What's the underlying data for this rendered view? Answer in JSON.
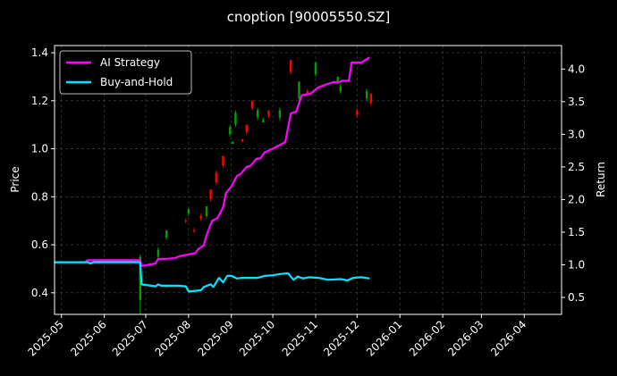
{
  "chart_data": {
    "type": "line",
    "title": "cnoption [90005550.SZ]",
    "ylabel": "Price",
    "y2label": "Return",
    "xlim": [
      "2025-04-26",
      "2026-04-28"
    ],
    "ylim": [
      0.31,
      1.43
    ],
    "y2lim": [
      0.24,
      4.36
    ],
    "x_ticks": [
      "2025-05",
      "2025-06",
      "2025-07",
      "2025-08",
      "2025-09",
      "2025-10",
      "2025-11",
      "2025-12",
      "2026-01",
      "2026-02",
      "2026-03",
      "2026-04"
    ],
    "y_ticks": [
      0.4,
      0.6,
      0.8,
      1.0,
      1.2,
      1.4
    ],
    "y_tick_labels": [
      "0.4",
      "0.6",
      "0.8",
      "1.0",
      "1.2",
      "1.4"
    ],
    "y2_ticks": [
      0.5,
      1.0,
      1.5,
      2.0,
      2.5,
      3.0,
      3.5,
      4.0
    ],
    "y2_tick_labels": [
      "0.5",
      "1.0",
      "1.5",
      "2.0",
      "2.5",
      "3.0",
      "3.5",
      "4.0"
    ],
    "grid": true,
    "legend_position": "upper-left",
    "series": [
      {
        "name": "AI Strategy",
        "axis": "right",
        "color": "#ff00ff",
        "points": [
          [
            "2025-04-26",
            1.04
          ],
          [
            "2025-05-18",
            1.04
          ],
          [
            "2025-05-20",
            1.07
          ],
          [
            "2025-06-01",
            1.07
          ],
          [
            "2025-06-27",
            1.07
          ],
          [
            "2025-06-28",
            0.98
          ],
          [
            "2025-07-03",
            1.0
          ],
          [
            "2025-07-08",
            1.02
          ],
          [
            "2025-07-10",
            1.09
          ],
          [
            "2025-07-15",
            1.09
          ],
          [
            "2025-07-22",
            1.1
          ],
          [
            "2025-07-25",
            1.13
          ],
          [
            "2025-08-01",
            1.16
          ],
          [
            "2025-08-06",
            1.18
          ],
          [
            "2025-08-08",
            1.24
          ],
          [
            "2025-08-12",
            1.3
          ],
          [
            "2025-08-14",
            1.45
          ],
          [
            "2025-08-18",
            1.67
          ],
          [
            "2025-08-22",
            1.72
          ],
          [
            "2025-08-26",
            1.88
          ],
          [
            "2025-08-28",
            2.1
          ],
          [
            "2025-09-01",
            2.2
          ],
          [
            "2025-09-05",
            2.36
          ],
          [
            "2025-09-08",
            2.4
          ],
          [
            "2025-09-12",
            2.5
          ],
          [
            "2025-09-15",
            2.52
          ],
          [
            "2025-09-19",
            2.62
          ],
          [
            "2025-09-22",
            2.63
          ],
          [
            "2025-09-25",
            2.72
          ],
          [
            "2025-10-01",
            2.78
          ],
          [
            "2025-10-10",
            2.88
          ],
          [
            "2025-10-14",
            3.32
          ],
          [
            "2025-10-18",
            3.35
          ],
          [
            "2025-10-22",
            3.6
          ],
          [
            "2025-10-28",
            3.62
          ],
          [
            "2025-11-03",
            3.72
          ],
          [
            "2025-11-08",
            3.76
          ],
          [
            "2025-11-14",
            3.8
          ],
          [
            "2025-11-18",
            3.8
          ],
          [
            "2025-11-20",
            3.82
          ],
          [
            "2025-11-25",
            3.82
          ],
          [
            "2025-11-27",
            4.1
          ],
          [
            "2025-12-04",
            4.1
          ],
          [
            "2025-12-10",
            4.18
          ]
        ]
      },
      {
        "name": "Buy-and-Hold",
        "axis": "right",
        "color": "#00e5ff",
        "points": [
          [
            "2025-04-26",
            1.04
          ],
          [
            "2025-05-20",
            1.04
          ],
          [
            "2025-05-22",
            1.02
          ],
          [
            "2025-05-24",
            1.04
          ],
          [
            "2025-06-27",
            1.04
          ],
          [
            "2025-06-28",
            0.7
          ],
          [
            "2025-07-08",
            0.67
          ],
          [
            "2025-07-10",
            0.7
          ],
          [
            "2025-07-12",
            0.68
          ],
          [
            "2025-07-25",
            0.68
          ],
          [
            "2025-07-30",
            0.67
          ],
          [
            "2025-08-01",
            0.59
          ],
          [
            "2025-08-10",
            0.61
          ],
          [
            "2025-08-12",
            0.66
          ],
          [
            "2025-08-17",
            0.7
          ],
          [
            "2025-08-19",
            0.66
          ],
          [
            "2025-08-23",
            0.8
          ],
          [
            "2025-08-26",
            0.73
          ],
          [
            "2025-08-29",
            0.83
          ],
          [
            "2025-09-01",
            0.83
          ],
          [
            "2025-09-05",
            0.79
          ],
          [
            "2025-09-09",
            0.8
          ],
          [
            "2025-09-13",
            0.8
          ],
          [
            "2025-09-20",
            0.8
          ],
          [
            "2025-09-25",
            0.83
          ],
          [
            "2025-10-01",
            0.84
          ],
          [
            "2025-10-07",
            0.86
          ],
          [
            "2025-10-12",
            0.87
          ],
          [
            "2025-10-16",
            0.77
          ],
          [
            "2025-10-19",
            0.82
          ],
          [
            "2025-10-23",
            0.79
          ],
          [
            "2025-10-27",
            0.81
          ],
          [
            "2025-11-03",
            0.8
          ],
          [
            "2025-11-10",
            0.77
          ],
          [
            "2025-11-19",
            0.78
          ],
          [
            "2025-11-24",
            0.76
          ],
          [
            "2025-11-28",
            0.8
          ],
          [
            "2025-12-04",
            0.81
          ],
          [
            "2025-12-10",
            0.79
          ]
        ]
      }
    ],
    "candles": {
      "axis": "left",
      "up_color": "#00a000",
      "down_color": "#ff0000",
      "items": [
        [
          "2025-06-27",
          0.37,
          0.55,
          0.31,
          0.56,
          "up"
        ],
        [
          "2025-07-10",
          0.55,
          0.58,
          0.54,
          0.59,
          "up"
        ],
        [
          "2025-07-16",
          0.63,
          0.66,
          0.62,
          0.66,
          "up"
        ],
        [
          "2025-07-30",
          0.7,
          0.7,
          0.69,
          0.71,
          "down"
        ],
        [
          "2025-08-01",
          0.73,
          0.75,
          0.72,
          0.75,
          "up"
        ],
        [
          "2025-08-05",
          0.66,
          0.66,
          0.65,
          0.67,
          "down"
        ],
        [
          "2025-08-10",
          0.71,
          0.72,
          0.7,
          0.73,
          "down"
        ],
        [
          "2025-08-14",
          0.72,
          0.76,
          0.71,
          0.76,
          "up"
        ],
        [
          "2025-08-17",
          0.79,
          0.83,
          0.78,
          0.83,
          "down"
        ],
        [
          "2025-08-21",
          0.86,
          0.9,
          0.85,
          0.91,
          "down"
        ],
        [
          "2025-08-26",
          0.93,
          0.97,
          0.92,
          0.97,
          "down"
        ],
        [
          "2025-08-31",
          1.06,
          1.09,
          1.05,
          1.1,
          "up"
        ],
        [
          "2025-09-02",
          1.02,
          1.03,
          1.02,
          1.03,
          "up"
        ],
        [
          "2025-09-04",
          1.1,
          1.15,
          1.09,
          1.16,
          "up"
        ],
        [
          "2025-09-09",
          1.03,
          1.04,
          1.03,
          1.04,
          "down"
        ],
        [
          "2025-09-12",
          1.07,
          1.1,
          1.06,
          1.1,
          "down"
        ],
        [
          "2025-09-16",
          1.17,
          1.2,
          1.16,
          1.2,
          "down"
        ],
        [
          "2025-09-20",
          1.13,
          1.16,
          1.12,
          1.17,
          "up"
        ],
        [
          "2025-09-24",
          1.11,
          1.12,
          1.11,
          1.13,
          "up"
        ],
        [
          "2025-09-28",
          1.14,
          1.16,
          1.13,
          1.16,
          "down"
        ],
        [
          "2025-10-06",
          1.13,
          1.16,
          1.12,
          1.17,
          "up"
        ],
        [
          "2025-10-14",
          1.32,
          1.37,
          1.31,
          1.37,
          "down"
        ],
        [
          "2025-10-20",
          1.21,
          1.28,
          1.2,
          1.28,
          "up"
        ],
        [
          "2025-10-26",
          1.23,
          1.24,
          1.23,
          1.25,
          "down"
        ],
        [
          "2025-11-01",
          1.31,
          1.36,
          1.3,
          1.36,
          "up"
        ],
        [
          "2025-11-17",
          1.28,
          1.3,
          1.27,
          1.3,
          "up"
        ],
        [
          "2025-11-19",
          1.24,
          1.26,
          1.23,
          1.27,
          "up"
        ],
        [
          "2025-12-01",
          1.14,
          1.16,
          1.13,
          1.17,
          "down"
        ],
        [
          "2025-12-08",
          1.21,
          1.24,
          1.2,
          1.25,
          "up"
        ],
        [
          "2025-12-11",
          1.19,
          1.23,
          1.18,
          1.23,
          "down"
        ]
      ]
    }
  }
}
